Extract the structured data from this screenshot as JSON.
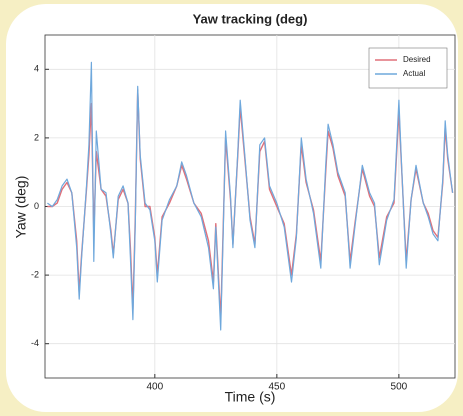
{
  "chart_data": {
    "type": "line",
    "title": "Yaw tracking (deg)",
    "xlabel": "Time (s)",
    "ylabel": "Yaw (deg)",
    "x": [
      356,
      358,
      360,
      362,
      364,
      366,
      368,
      369,
      370,
      372,
      373,
      374,
      375,
      376,
      378,
      380,
      382,
      383,
      385,
      387,
      389,
      390,
      391,
      392,
      393,
      394,
      396,
      398,
      400,
      401,
      403,
      406,
      409,
      411,
      413,
      416,
      419,
      422,
      424,
      425,
      427,
      428,
      429,
      431,
      432,
      434,
      435,
      437,
      439,
      441,
      443,
      445,
      447,
      450,
      453,
      456,
      458,
      460,
      462,
      465,
      468,
      470,
      471,
      473,
      475,
      478,
      480,
      482,
      485,
      488,
      490,
      492,
      495,
      498,
      500,
      501,
      503,
      505,
      507,
      510,
      512,
      514,
      516,
      518,
      519,
      520,
      522
    ],
    "series": [
      {
        "name": "Desired",
        "color": "#e0707a",
        "values": [
          0,
          0,
          0.1,
          0.5,
          0.7,
          0.4,
          -1.0,
          -2.5,
          -1.4,
          0.5,
          1.5,
          3.0,
          -0.8,
          1.6,
          0.5,
          0.3,
          -0.7,
          -1.4,
          0.2,
          0.5,
          0.1,
          -1.2,
          -3.0,
          -0.3,
          3.4,
          1.4,
          0,
          0,
          -0.9,
          -2.0,
          -0.3,
          0.1,
          0.6,
          1.2,
          0.8,
          0.1,
          -0.2,
          -1.0,
          -2.2,
          -0.5,
          -3.3,
          -0.6,
          2.0,
          0.2,
          -1.1,
          1.5,
          2.9,
          1.3,
          -0.3,
          -1.1,
          1.6,
          1.9,
          0.5,
          0,
          -0.5,
          -2.0,
          -0.8,
          1.8,
          0.7,
          -0.1,
          -1.6,
          1.0,
          2.2,
          1.7,
          0.9,
          0.3,
          -1.6,
          -0.5,
          1.1,
          0.3,
          0,
          -1.5,
          -0.3,
          0.1,
          2.8,
          1.3,
          -1.6,
          0.2,
          1.1,
          0.1,
          -0.2,
          -0.7,
          -0.9,
          0.7,
          2.3,
          1.4,
          0.4
        ]
      },
      {
        "name": "Actual",
        "color": "#6fa8dc",
        "values": [
          0.1,
          0,
          0.2,
          0.6,
          0.8,
          0.4,
          -1.2,
          -2.7,
          -1.5,
          0.6,
          1.8,
          4.2,
          -1.6,
          2.2,
          0.5,
          0.4,
          -0.8,
          -1.5,
          0.3,
          0.6,
          0.1,
          -1.5,
          -3.3,
          -0.5,
          3.5,
          1.5,
          0.1,
          -0.1,
          -1.0,
          -2.2,
          -0.4,
          0.2,
          0.6,
          1.3,
          0.9,
          0.1,
          -0.3,
          -1.2,
          -2.4,
          -0.6,
          -3.6,
          -0.8,
          2.2,
          0.3,
          -1.2,
          1.6,
          3.1,
          1.4,
          -0.4,
          -1.2,
          1.8,
          2.0,
          0.6,
          0.1,
          -0.6,
          -2.2,
          -0.9,
          2.0,
          0.8,
          -0.2,
          -1.8,
          1.2,
          2.4,
          1.8,
          1.0,
          0.4,
          -1.8,
          -0.6,
          1.2,
          0.4,
          0.1,
          -1.7,
          -0.4,
          0.2,
          3.1,
          1.4,
          -1.8,
          0.2,
          1.2,
          0.1,
          -0.3,
          -0.8,
          -1.0,
          0.8,
          2.5,
          1.5,
          0.4
        ]
      }
    ],
    "xlim": [
      355,
      523
    ],
    "xticks": [
      400,
      450,
      500
    ],
    "ylim": [
      -5,
      5
    ],
    "yticks": [
      -4,
      -2,
      0,
      2,
      4
    ],
    "grid": true,
    "legend": "northeast"
  }
}
